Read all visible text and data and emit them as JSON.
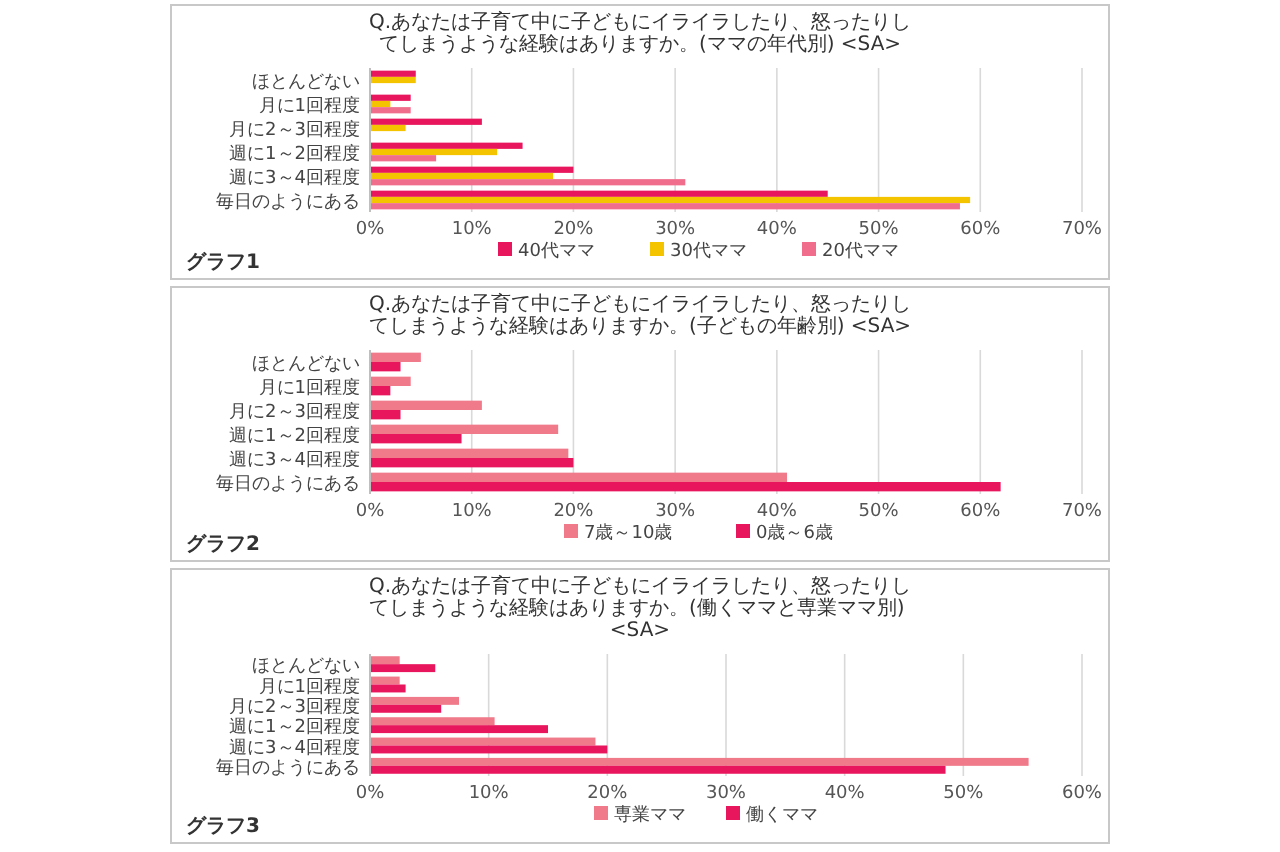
{
  "chart_data": [
    {
      "type": "bar",
      "orientation": "horizontal",
      "title": "Q.あなたは子育て中に子どもにイライラしたり、怒ったりしてしまうような経験はありますか。(ママの年代別) <SA>",
      "categories": [
        "ほとんどない",
        "月に1回程度",
        "月に2～3回程度",
        "週に1～2回程度",
        "週に3～4回程度",
        "毎日のようにある"
      ],
      "series": [
        {
          "name": "40代ママ",
          "color": "#e8175d",
          "values": [
            4.5,
            4,
            11,
            15,
            20,
            45
          ]
        },
        {
          "name": "30代ママ",
          "color": "#f5c400",
          "values": [
            4.5,
            2,
            3.5,
            12.5,
            18,
            59
          ]
        },
        {
          "name": "20代ママ",
          "color": "#f06e8c",
          "values": [
            0,
            4,
            0,
            6.5,
            31,
            58
          ]
        }
      ],
      "xlim": [
        0,
        70
      ],
      "xticks": [
        {
          "value": 0,
          "label": "0%"
        },
        {
          "value": 10,
          "label": "10%"
        },
        {
          "value": 20,
          "label": "20%"
        },
        {
          "value": 30,
          "label": "30%"
        },
        {
          "value": 40,
          "label": "40%"
        },
        {
          "value": 50,
          "label": "50%"
        },
        {
          "value": 60,
          "label": "60%"
        },
        {
          "value": 70,
          "label": "70%"
        }
      ],
      "grid": "x",
      "legend": "bottom",
      "annotations": [
        "グラフ1"
      ]
    },
    {
      "type": "bar",
      "orientation": "horizontal",
      "title": "Q.あなたは子育て中に子どもにイライラしたり、怒ったりしてしまうような経験はありますか。(子どもの年齢別) <SA>",
      "categories": [
        "ほとんどない",
        "月に1回程度",
        "月に2～3回程度",
        "週に1～2回程度",
        "週に3～4回程度",
        "毎日のようにある"
      ],
      "series": [
        {
          "name": "7歳～10歳",
          "color": "#f07a8a",
          "values": [
            5,
            4,
            11,
            18.5,
            19.5,
            41
          ]
        },
        {
          "name": "0歳～6歳",
          "color": "#e8175d",
          "values": [
            3,
            2,
            3,
            9,
            20,
            62
          ]
        }
      ],
      "xlim": [
        0,
        70
      ],
      "xticks": [
        {
          "value": 0,
          "label": "0%"
        },
        {
          "value": 10,
          "label": "10%"
        },
        {
          "value": 20,
          "label": "20%"
        },
        {
          "value": 30,
          "label": "30%"
        },
        {
          "value": 40,
          "label": "40%"
        },
        {
          "value": 50,
          "label": "50%"
        },
        {
          "value": 60,
          "label": "60%"
        },
        {
          "value": 70,
          "label": "70%"
        }
      ],
      "grid": "x",
      "legend": "bottom",
      "annotations": [
        "グラフ2"
      ]
    },
    {
      "type": "bar",
      "orientation": "horizontal",
      "title": "Q.あなたは子育て中に子どもにイライラしたり、怒ったりしてしまうような経験はありますか。(働くママと専業ママ別) <SA>",
      "categories": [
        "ほとんどない",
        "月に1回程度",
        "月に2～3回程度",
        "週に1～2回程度",
        "週に3～4回程度",
        "毎日のようにある"
      ],
      "series": [
        {
          "name": "専業ママ",
          "color": "#f07a8a",
          "values": [
            2.5,
            2.5,
            7.5,
            10.5,
            19,
            55.5
          ]
        },
        {
          "name": "働くママ",
          "color": "#e8175d",
          "values": [
            5.5,
            3,
            6,
            15,
            20,
            48.5
          ]
        }
      ],
      "xlim": [
        0,
        60
      ],
      "xticks": [
        {
          "value": 0,
          "label": "0%"
        },
        {
          "value": 10,
          "label": "10%"
        },
        {
          "value": 20,
          "label": "20%"
        },
        {
          "value": 30,
          "label": "30%"
        },
        {
          "value": 40,
          "label": "40%"
        },
        {
          "value": 50,
          "label": "50%"
        },
        {
          "value": 60,
          "label": "60%"
        }
      ],
      "grid": "x",
      "legend": "bottom",
      "annotations": [
        "グラフ3"
      ]
    }
  ]
}
